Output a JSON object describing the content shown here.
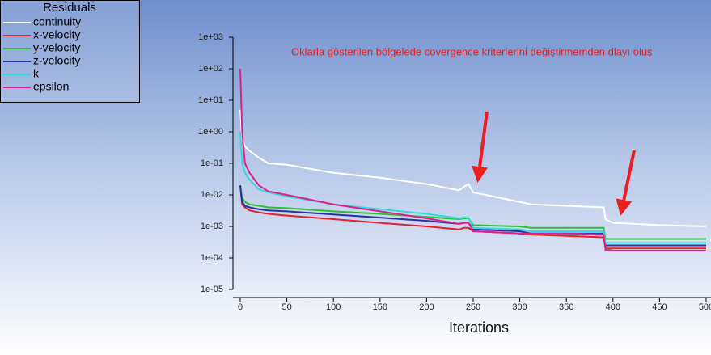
{
  "chart_data": {
    "type": "line",
    "title": "Residuals",
    "x_label": "Iterations",
    "annotation": "Oklarla gösterilen bölgelede covergence kriterlerini değiştirmemden dlayı oluş",
    "ylog": true,
    "x": [
      0,
      2,
      5,
      10,
      20,
      30,
      50,
      100,
      150,
      200,
      235,
      240,
      245,
      250,
      300,
      312,
      350,
      390,
      392,
      400,
      450,
      500
    ],
    "series": [
      {
        "name": "continuity",
        "color": "#ffffff",
        "values": [
          5,
          0.6,
          0.35,
          0.25,
          0.15,
          0.1,
          0.09,
          0.05,
          0.035,
          0.022,
          0.014,
          0.018,
          0.022,
          0.012,
          0.006,
          0.005,
          0.0045,
          0.004,
          0.0017,
          0.0013,
          0.0011,
          0.001
        ]
      },
      {
        "name": "x-velocity",
        "color": "#e8202a",
        "values": [
          0.02,
          0.005,
          0.004,
          0.0032,
          0.0028,
          0.0025,
          0.0022,
          0.0017,
          0.0013,
          0.001,
          0.0008,
          0.0009,
          0.0009,
          0.0007,
          0.0006,
          0.00055,
          0.0005,
          0.00045,
          0.0002,
          0.0002,
          0.0002,
          0.0002
        ]
      },
      {
        "name": "y-velocity",
        "color": "#2fc02f",
        "values": [
          0.02,
          0.008,
          0.006,
          0.005,
          0.0045,
          0.004,
          0.0038,
          0.003,
          0.0025,
          0.002,
          0.0017,
          0.0018,
          0.0018,
          0.0011,
          0.001,
          0.0009,
          0.0009,
          0.0009,
          0.0004,
          0.0004,
          0.0004,
          0.0004
        ]
      },
      {
        "name": "z-velocity",
        "color": "#2a2fa8",
        "values": [
          0.02,
          0.006,
          0.0045,
          0.004,
          0.0035,
          0.0032,
          0.003,
          0.0024,
          0.0019,
          0.0015,
          0.0012,
          0.0013,
          0.0013,
          0.0008,
          0.0007,
          0.0006,
          0.0006,
          0.0006,
          0.00025,
          0.00025,
          0.00025,
          0.00025
        ]
      },
      {
        "name": "k",
        "color": "#30d8e0",
        "values": [
          1,
          0.1,
          0.05,
          0.03,
          0.015,
          0.012,
          0.009,
          0.005,
          0.0035,
          0.0025,
          0.0018,
          0.0019,
          0.0019,
          0.0009,
          0.0008,
          0.0007,
          0.0007,
          0.0007,
          0.0003,
          0.0003,
          0.0003,
          0.0003
        ]
      },
      {
        "name": "epsilon",
        "color": "#e0208a",
        "values": [
          100,
          1,
          0.1,
          0.05,
          0.02,
          0.013,
          0.01,
          0.005,
          0.003,
          0.0018,
          0.0012,
          0.0013,
          0.0013,
          0.0007,
          0.0006,
          0.0006,
          0.0006,
          0.00055,
          0.00018,
          0.00017,
          0.00017,
          0.00017
        ]
      }
    ],
    "xlim": [
      0,
      500
    ],
    "xticks": [
      0,
      50,
      100,
      150,
      200,
      250,
      300,
      350,
      400,
      450,
      500
    ],
    "ylim": [
      1e-05,
      1000
    ],
    "yticks": [
      {
        "value": 1000,
        "label": "1e+03"
      },
      {
        "value": 100,
        "label": "1e+02"
      },
      {
        "value": 10,
        "label": "1e+01"
      },
      {
        "value": 1,
        "label": "1e+00"
      },
      {
        "value": 0.1,
        "label": "1e-01"
      },
      {
        "value": 0.01,
        "label": "1e-02"
      },
      {
        "value": 0.001,
        "label": "1e-03"
      },
      {
        "value": 0.0001,
        "label": "1e-04"
      },
      {
        "value": 1e-05,
        "label": "1e-05"
      }
    ]
  }
}
